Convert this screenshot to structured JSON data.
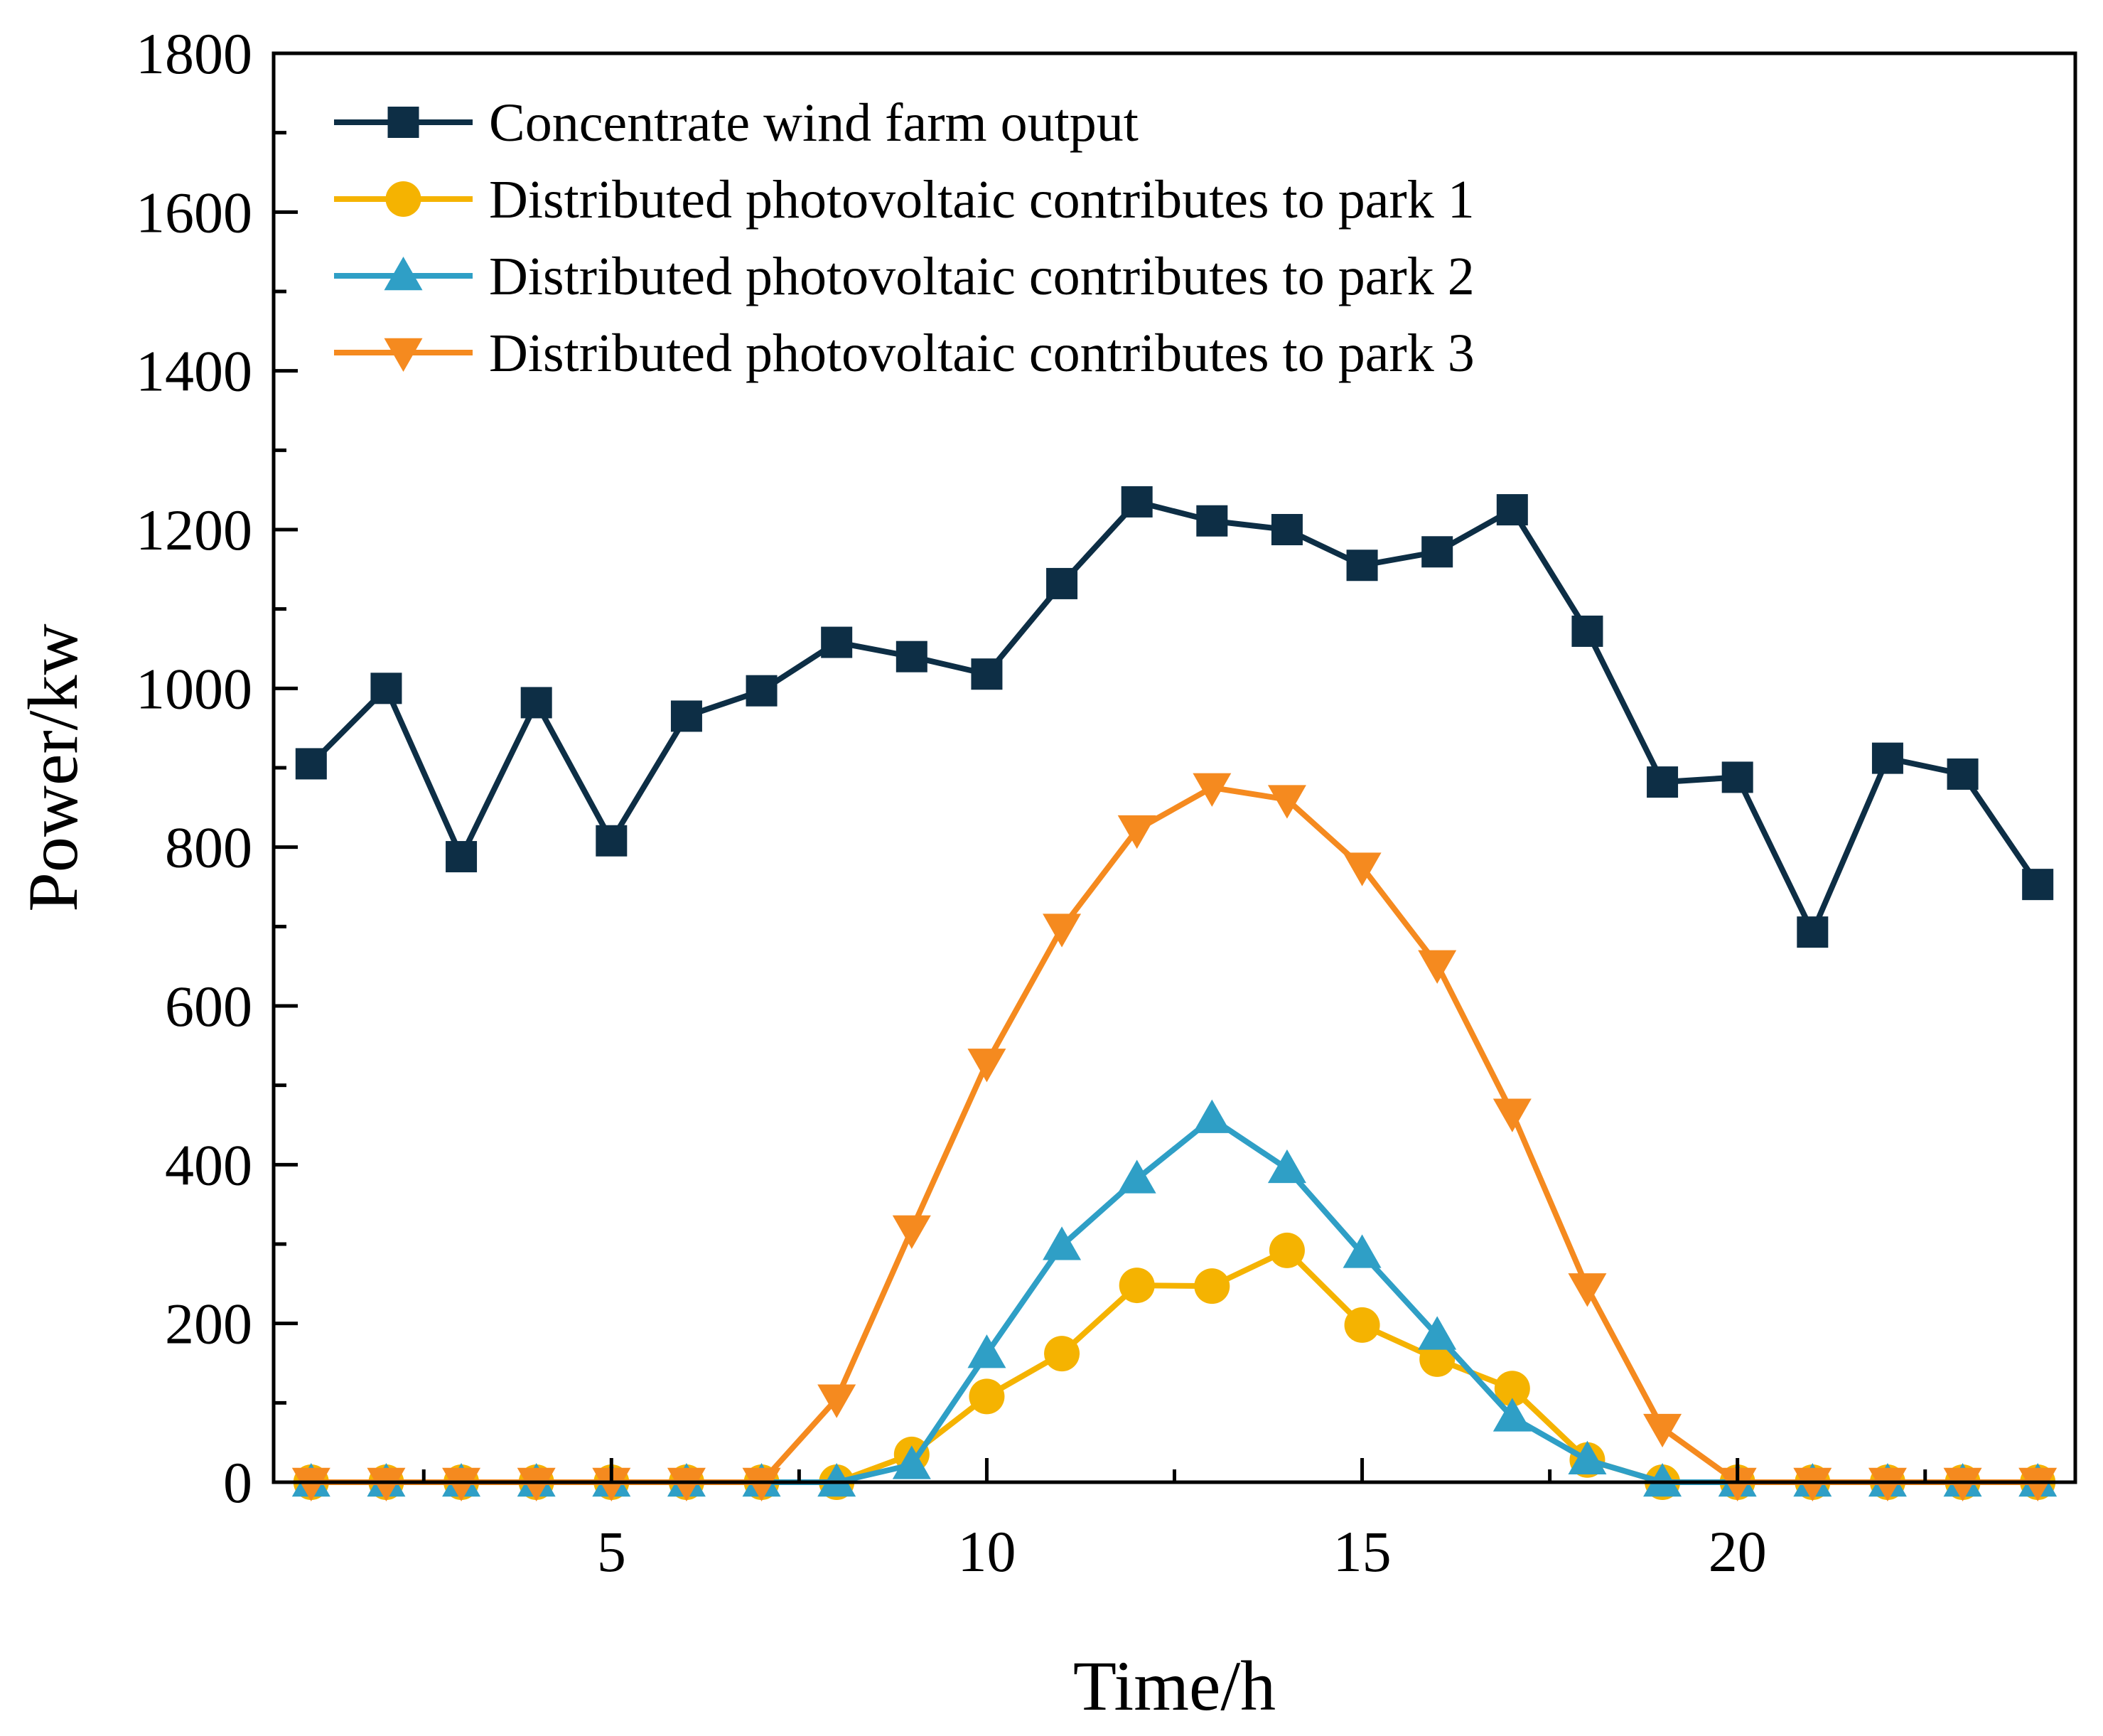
{
  "chart_data": {
    "type": "line",
    "title": "",
    "xlabel": "Time/h",
    "ylabel": "Power/kw",
    "xlim": [
      0.5,
      24.5
    ],
    "ylim": [
      0,
      1800
    ],
    "xticks": [
      5,
      10,
      15,
      20
    ],
    "xtick_labels": [
      "5",
      "10",
      "15",
      "20"
    ],
    "yticks": [
      0,
      200,
      400,
      600,
      800,
      1000,
      1200,
      1400,
      1600,
      1800
    ],
    "ytick_labels": [
      "0",
      "200",
      "400",
      "600",
      "800",
      "1000",
      "1200",
      "1400",
      "1600",
      "1800"
    ],
    "grid": false,
    "legend_position": "top-left",
    "x": [
      1,
      2,
      3,
      4,
      5,
      6,
      7,
      8,
      9,
      10,
      11,
      12,
      13,
      14,
      15,
      16,
      17,
      18,
      19,
      20,
      21,
      22,
      23,
      24
    ],
    "series": [
      {
        "name": "Concentrate wind farm output",
        "color": "#0d2e45",
        "marker": "square",
        "values": [
          905,
          1000,
          788,
          982,
          808,
          965,
          997,
          1058,
          1040,
          1018,
          1132,
          1235,
          1211,
          1200,
          1155,
          1172,
          1225,
          1072,
          882,
          888,
          693,
          912,
          892,
          753
        ]
      },
      {
        "name": "Distributed photovoltaic contributes to park 1",
        "color": "#f5b301",
        "marker": "circle",
        "values": [
          0,
          0,
          0,
          0,
          0,
          0,
          0,
          0,
          35,
          108,
          162,
          248,
          247,
          292,
          198,
          155,
          118,
          28,
          0,
          0,
          0,
          0,
          0,
          0
        ]
      },
      {
        "name": "Distributed photovoltaic contributes to park 2",
        "color": "#2f9fc6",
        "marker": "triangle-up",
        "values": [
          0,
          0,
          0,
          0,
          0,
          0,
          0,
          0,
          22,
          162,
          298,
          382,
          458,
          395,
          288,
          185,
          82,
          28,
          0,
          0,
          0,
          0,
          0,
          0
        ]
      },
      {
        "name": "Distributed photovoltaic contributes to park 3",
        "color": "#f58a1f",
        "marker": "triangle-down",
        "values": [
          0,
          0,
          0,
          0,
          0,
          0,
          0,
          105,
          318,
          528,
          698,
          822,
          875,
          860,
          775,
          652,
          465,
          245,
          68,
          0,
          0,
          0,
          0,
          0
        ]
      }
    ]
  }
}
